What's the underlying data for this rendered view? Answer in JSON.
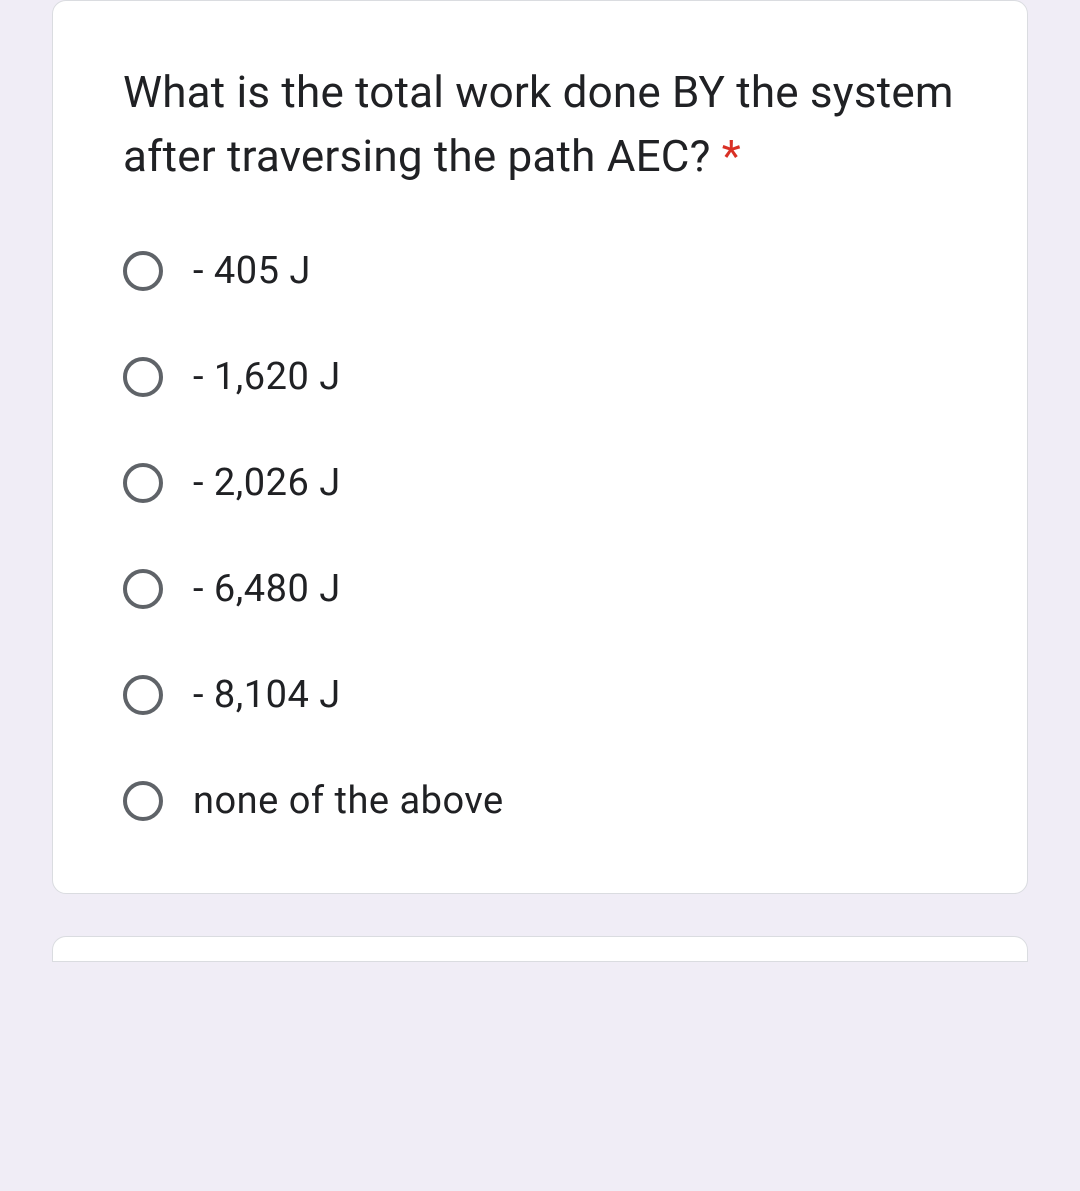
{
  "question": {
    "text": "What is the total work done BY the system after traversing the path AEC?",
    "required_marker": "*",
    "required_color": "#d93025"
  },
  "options": [
    {
      "label": "- 405 J"
    },
    {
      "label": "- 1,620 J"
    },
    {
      "label": "- 2,026 J"
    },
    {
      "label": "- 6,480 J"
    },
    {
      "label": "- 8,104 J"
    },
    {
      "label": "none of the above"
    }
  ],
  "colors": {
    "page_background": "#f0edf6",
    "card_background": "#ffffff",
    "card_border": "#dadce0",
    "text": "#202124",
    "radio_border": "#5f6368"
  }
}
